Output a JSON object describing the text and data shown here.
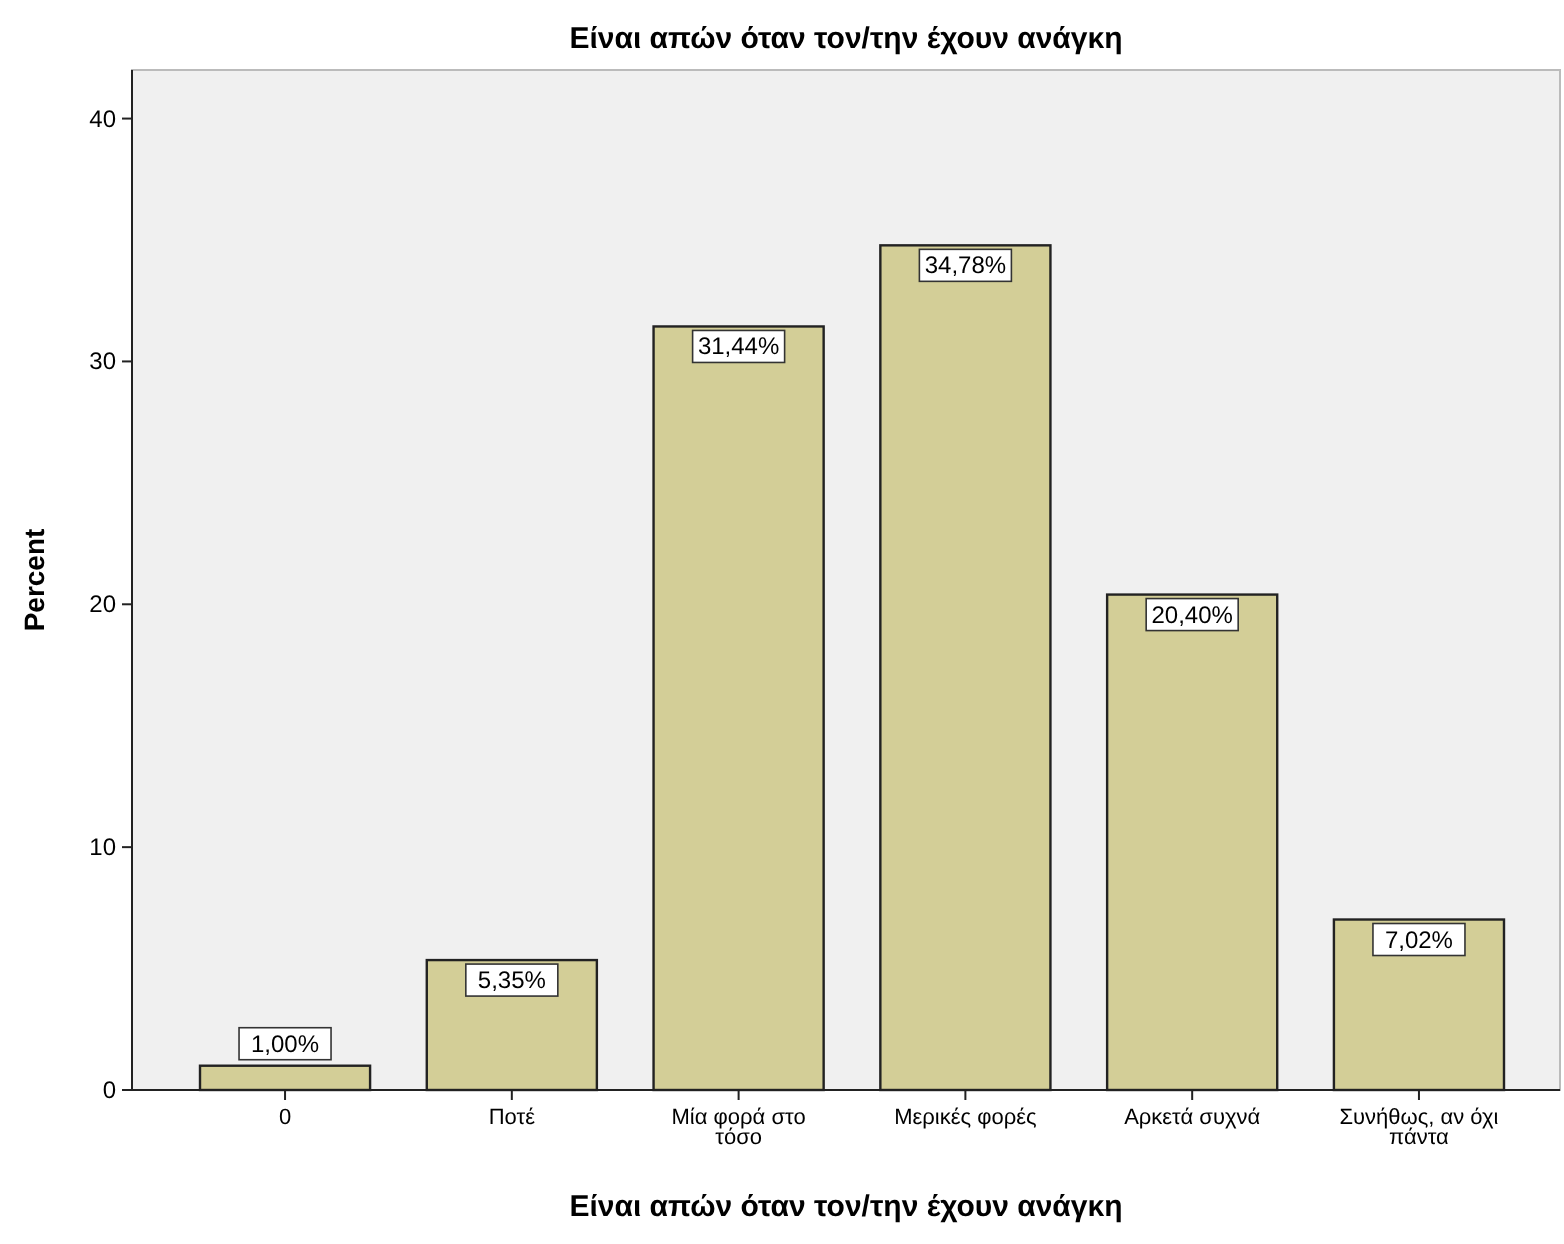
{
  "chart_data": {
    "type": "bar",
    "title": "Είναι απών όταν τον/την έχουν ανάγκη",
    "xlabel": "Είναι απών όταν τον/την έχουν ανάγκη",
    "ylabel": "Percent",
    "categories": [
      "0",
      "Ποτέ",
      "Μία φορά στο τόσο",
      "Μερικές φορές",
      "Αρκετά συχνά",
      "Συνήθως, αν όχι πάντα"
    ],
    "values": [
      1.0,
      5.35,
      31.44,
      34.78,
      20.4,
      7.02
    ],
    "value_labels": [
      "1,00%",
      "5,35%",
      "31,44%",
      "34,78%",
      "20,40%",
      "7,02%"
    ],
    "color": "#d3ce97",
    "ylim": [
      0,
      42
    ],
    "yticks": [
      0,
      10,
      20,
      30,
      40
    ],
    "grid": false
  }
}
